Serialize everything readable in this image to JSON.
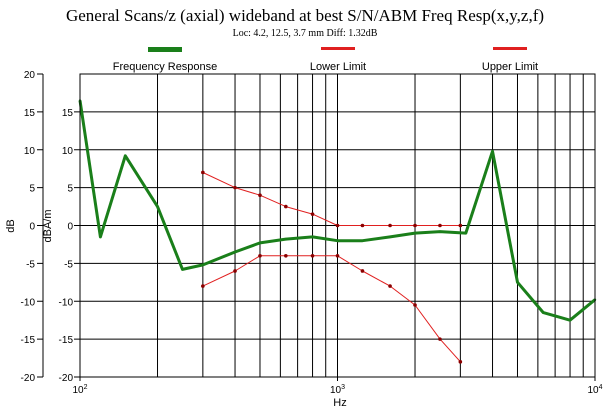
{
  "chart_data": {
    "type": "line",
    "title": "General Scans/z (axial) wideband at best S/N/ABM Freq Resp(x,y,z,f)",
    "subtitle": "Loc: 4.2, 12.5, 3.7 mm Diff: 1.32dB",
    "xlabel": "Hz",
    "ylabel_outer": "dB",
    "ylabel_inner": "dBA/m",
    "x_scale": "log",
    "xlim": [
      100,
      10000
    ],
    "ylim": [
      -20,
      20
    ],
    "grid": true,
    "legend_position": "top",
    "x_ticks": [
      {
        "value": 100,
        "base": "10",
        "exp": "2"
      },
      {
        "value": 1000,
        "base": "10",
        "exp": "3"
      },
      {
        "value": 10000,
        "base": "10",
        "exp": "4"
      }
    ],
    "y_ticks_outer": [
      "20",
      "15",
      "10",
      "5",
      "0",
      "-5",
      "-10",
      "-15",
      "-20"
    ],
    "y_ticks_inner": [
      "15",
      "10",
      "5",
      "0",
      "-5",
      "-10",
      "-15",
      "-20"
    ],
    "series": [
      {
        "name": "Frequency Response",
        "color": "#1a7f1a",
        "width": 3,
        "points": [
          [
            100,
            16.5
          ],
          [
            120,
            -1.5
          ],
          [
            150,
            9.2
          ],
          [
            200,
            2.5
          ],
          [
            250,
            -5.8
          ],
          [
            300,
            -5.2
          ],
          [
            400,
            -3.5
          ],
          [
            500,
            -2.3
          ],
          [
            630,
            -1.8
          ],
          [
            800,
            -1.5
          ],
          [
            1000,
            -2.0
          ],
          [
            1250,
            -2.0
          ],
          [
            1600,
            -1.5
          ],
          [
            2000,
            -1.0
          ],
          [
            2500,
            -0.8
          ],
          [
            3150,
            -1.0
          ],
          [
            4000,
            9.8
          ],
          [
            5000,
            -7.5
          ],
          [
            6300,
            -11.5
          ],
          [
            8000,
            -12.5
          ],
          [
            10000,
            -9.8
          ]
        ]
      },
      {
        "name": "Lower Limit",
        "color": "#e02020",
        "width": 1,
        "points": [
          [
            300,
            -8.0
          ],
          [
            400,
            -6.0
          ],
          [
            500,
            -4.0
          ],
          [
            630,
            -4.0
          ],
          [
            800,
            -4.0
          ],
          [
            1000,
            -4.0
          ],
          [
            1250,
            -6.0
          ],
          [
            1600,
            -8.0
          ],
          [
            2000,
            -10.5
          ],
          [
            2500,
            -15.0
          ],
          [
            3000,
            -18.0
          ]
        ]
      },
      {
        "name": "Upper Limit",
        "color": "#e02020",
        "width": 1,
        "points": [
          [
            300,
            7.0
          ],
          [
            400,
            5.0
          ],
          [
            500,
            4.0
          ],
          [
            630,
            2.5
          ],
          [
            800,
            1.5
          ],
          [
            1000,
            0
          ],
          [
            1250,
            0
          ],
          [
            1600,
            0
          ],
          [
            2000,
            0
          ],
          [
            2500,
            0
          ],
          [
            3000,
            0
          ]
        ]
      }
    ]
  }
}
